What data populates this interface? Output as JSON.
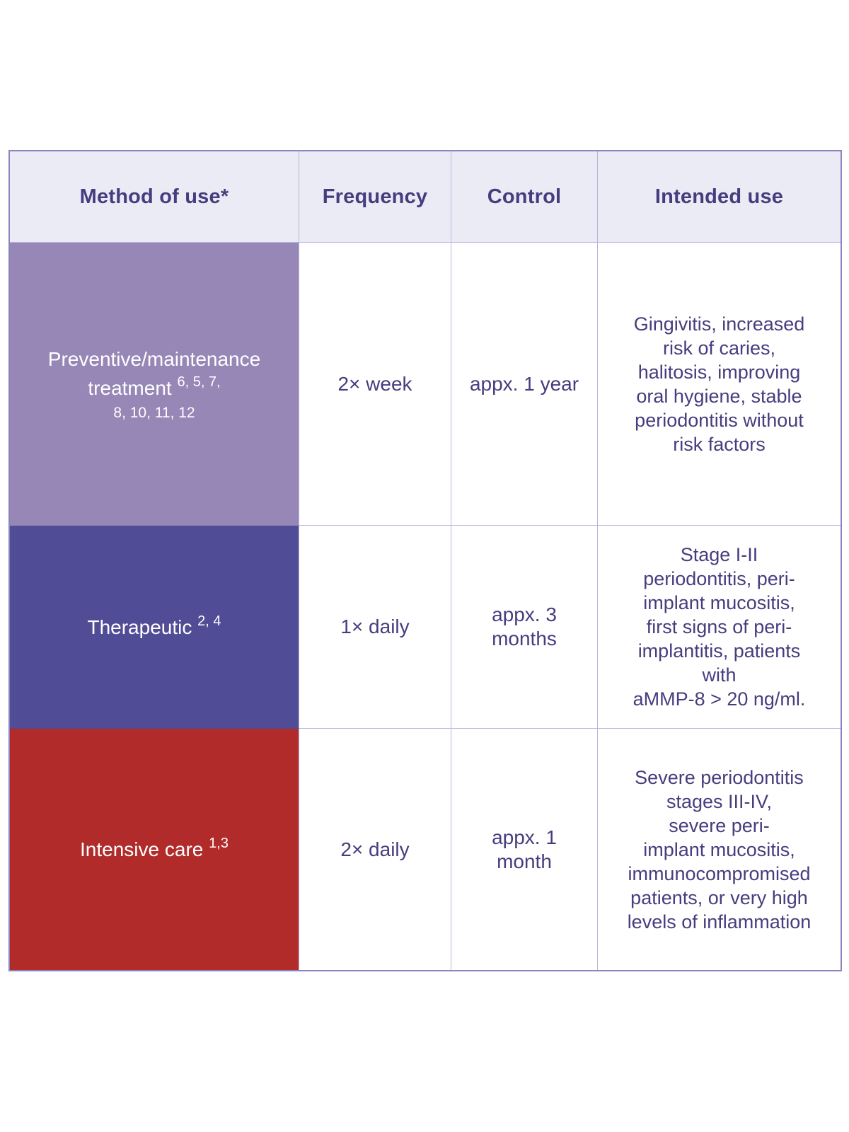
{
  "table": {
    "header": {
      "columns": [
        "Method of use*",
        "Frequency",
        "Control",
        "Intended use"
      ]
    },
    "rows": [
      {
        "method": {
          "label": "Preventive/maintenance treatment",
          "sup": "6, 5, 7,",
          "refs_line": "8, 10, 11, 12"
        },
        "frequency": "2× week",
        "control": "appx. 1 year",
        "intended_use": "Gingivitis, increased\nrisk of caries,\nhalitosis, improving\noral hygiene, stable\nperiodontitis without\nrisk factors"
      },
      {
        "method": {
          "label": "Therapeutic",
          "sup": "2, 4"
        },
        "frequency": "1× daily",
        "control": "appx. 3\nmonths",
        "intended_use": "Stage I-II\nperiodontitis, peri-\nimplant mucositis,\nfirst signs of peri-\nimplantitis, patients\nwith\naMMP-8 > 20 ng/ml."
      },
      {
        "method": {
          "label": "Intensive care",
          "sup": "1,3"
        },
        "frequency": "2× daily",
        "control": "appx. 1\nmonth",
        "intended_use": "Severe periodontitis\nstages III-IV,\nsevere peri-\nimplant mucositis,\nimmunocompromised\npatients, or very high\nlevels of inflammation"
      }
    ],
    "colors": {
      "header_bg": "#ebebf5",
      "preventive_bg": "#9787b6",
      "therapeutic_bg": "#514c96",
      "intensive_bg": "#b12b2a",
      "text": "#463d7e",
      "border_outer": "#8b84bf",
      "border_inner": "#b9b5da"
    }
  }
}
